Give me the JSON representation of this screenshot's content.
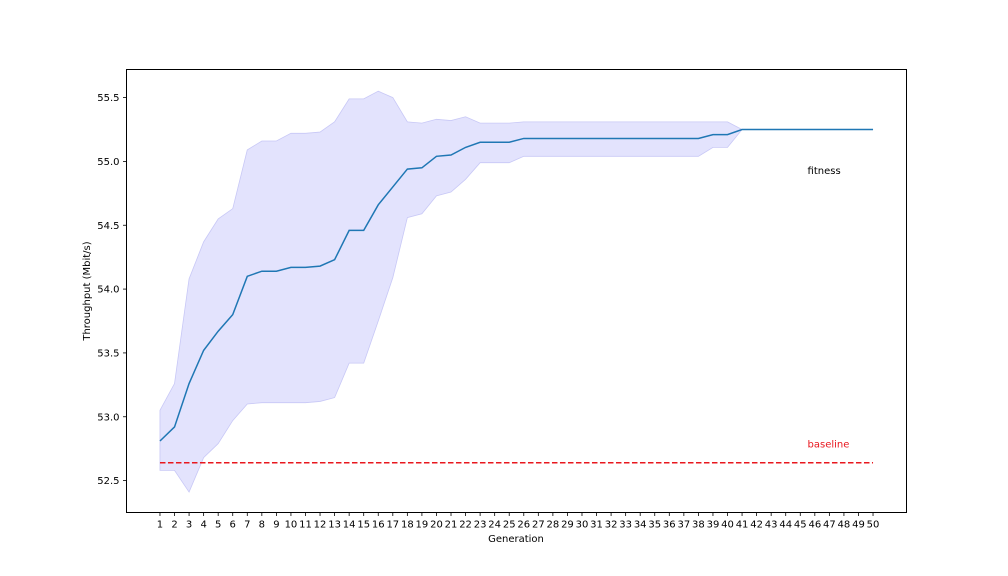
{
  "chart_data": {
    "type": "line",
    "xlabel": "Generation",
    "ylabel": "Throughput (Mbit/s)",
    "x": [
      1,
      2,
      3,
      4,
      5,
      6,
      7,
      8,
      9,
      10,
      11,
      12,
      13,
      14,
      15,
      16,
      17,
      18,
      19,
      20,
      21,
      22,
      23,
      24,
      25,
      26,
      27,
      28,
      29,
      30,
      31,
      32,
      33,
      34,
      35,
      36,
      37,
      38,
      39,
      40,
      41,
      42,
      43,
      44,
      45,
      46,
      47,
      48,
      49,
      50
    ],
    "xlim": [
      -1.3,
      52.3
    ],
    "ylim": [
      52.25,
      55.72
    ],
    "yticks": [
      52.5,
      53.0,
      53.5,
      54.0,
      54.5,
      55.0,
      55.5
    ],
    "ytick_labels": [
      "52.5",
      "53.0",
      "53.5",
      "54.0",
      "54.5",
      "55.0",
      "55.5"
    ],
    "grid": false,
    "series": [
      {
        "name": "fitness",
        "color": "#1f77b4",
        "values": [
          52.81,
          52.92,
          53.26,
          53.52,
          53.67,
          53.8,
          54.1,
          54.14,
          54.14,
          54.17,
          54.17,
          54.18,
          54.23,
          54.46,
          54.46,
          54.66,
          54.8,
          54.94,
          54.95,
          55.04,
          55.05,
          55.11,
          55.15,
          55.15,
          55.15,
          55.18,
          55.18,
          55.18,
          55.18,
          55.18,
          55.18,
          55.18,
          55.18,
          55.18,
          55.18,
          55.18,
          55.18,
          55.18,
          55.21,
          55.21,
          55.25,
          55.25,
          55.25,
          55.25,
          55.25,
          55.25,
          55.25,
          55.25,
          55.25,
          55.25
        ],
        "band_upper": [
          53.05,
          53.26,
          54.08,
          54.37,
          54.55,
          54.63,
          55.09,
          55.16,
          55.16,
          55.22,
          55.22,
          55.23,
          55.31,
          55.49,
          55.49,
          55.55,
          55.5,
          55.31,
          55.3,
          55.33,
          55.32,
          55.35,
          55.3,
          55.3,
          55.3,
          55.31,
          55.31,
          55.31,
          55.31,
          55.31,
          55.31,
          55.31,
          55.31,
          55.31,
          55.31,
          55.31,
          55.31,
          55.31,
          55.31,
          55.31,
          55.25,
          55.25,
          55.25,
          55.25,
          55.25,
          55.25,
          55.25,
          55.25,
          55.25,
          55.25
        ],
        "band_lower": [
          52.58,
          52.58,
          52.41,
          52.68,
          52.79,
          52.97,
          53.1,
          53.11,
          53.11,
          53.11,
          53.11,
          53.12,
          53.15,
          53.42,
          53.42,
          53.75,
          54.09,
          54.56,
          54.59,
          54.73,
          54.76,
          54.86,
          54.99,
          54.99,
          54.99,
          55.04,
          55.04,
          55.04,
          55.04,
          55.04,
          55.04,
          55.04,
          55.04,
          55.04,
          55.04,
          55.04,
          55.04,
          55.04,
          55.11,
          55.11,
          55.25,
          55.25,
          55.25,
          55.25,
          55.25,
          55.25,
          55.25,
          55.25,
          55.25,
          55.25
        ],
        "band_color": "#e3e3fd",
        "band_edge_color": "#c8c8f6"
      }
    ],
    "baseline": {
      "name": "baseline",
      "value": 52.64,
      "color": "#e8171e",
      "style": "dashed"
    },
    "annotations": [
      {
        "text": "fitness",
        "x": 45.5,
        "y": 54.9,
        "color": "#000000"
      },
      {
        "text": "baseline",
        "x": 45.5,
        "y": 52.76,
        "color": "#e8171e"
      }
    ]
  }
}
